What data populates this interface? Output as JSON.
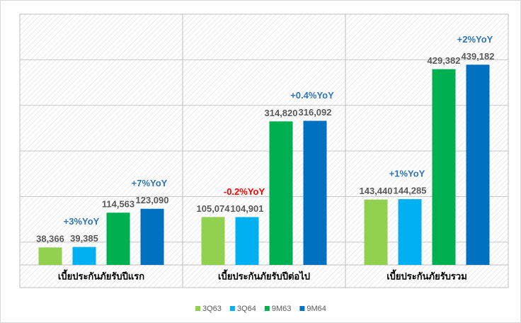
{
  "chart_data": {
    "type": "bar",
    "categories": [
      "เบี้ยประกันภัยรับปีแรก",
      "เบี้ยประกันภัยรับปีต่อไป",
      "เบี้ยประกันภัยรับรวม"
    ],
    "series": [
      {
        "name": "3Q63",
        "color": "#92d050",
        "values": [
          38366,
          105074,
          143440
        ],
        "value_labels": [
          "38,366",
          "105,074",
          "143,440"
        ]
      },
      {
        "name": "3Q64",
        "color": "#00b0f0",
        "values": [
          39385,
          104901,
          144285
        ],
        "value_labels": [
          "39,385",
          "104,901",
          "144,285"
        ],
        "annotations": [
          "+3%YoY",
          "-0.2%YoY",
          "+1%YoY"
        ],
        "annotation_colors": [
          "#2e75b6",
          "#ff0000",
          "#2e75b6"
        ]
      },
      {
        "name": "9M63",
        "color": "#00b050",
        "values": [
          114563,
          314820,
          429382
        ],
        "value_labels": [
          "114,563",
          "314,820",
          "429,382"
        ]
      },
      {
        "name": "9M64",
        "color": "#0070c0",
        "values": [
          123090,
          316092,
          439182
        ],
        "value_labels": [
          "123,090",
          "316,092",
          "439,182"
        ],
        "annotations": [
          "+7%YoY",
          "+0.4%YoY",
          "+2%YoY"
        ],
        "annotation_colors": [
          "#2e75b6",
          "#2e75b6",
          "#2e75b6"
        ]
      }
    ],
    "ylim": [
      0,
      550000
    ],
    "yticks": [
      50000,
      150000,
      250000,
      350000,
      450000
    ],
    "grid": true
  }
}
